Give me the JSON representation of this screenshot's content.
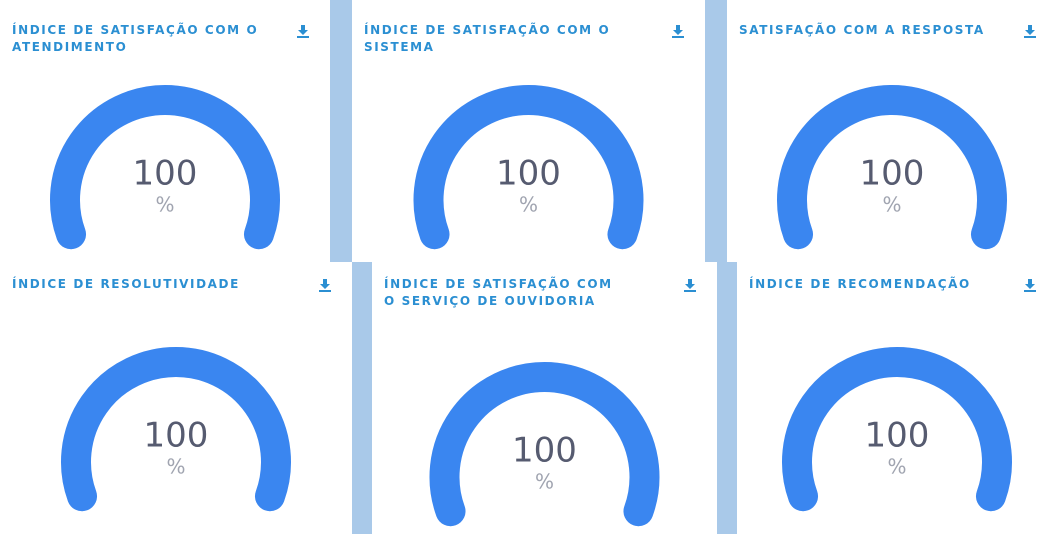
{
  "chart_data": [
    {
      "type": "gauge",
      "title": "ÍNDICE DE SATISFAÇÃO COM O ATENDIMENTO",
      "value": 100,
      "unit": "%",
      "ylim": [
        0,
        100
      ],
      "color": "#3a86f0"
    },
    {
      "type": "gauge",
      "title": "ÍNDICE DE SATISFAÇÃO COM O SISTEMA",
      "value": 100,
      "unit": "%",
      "ylim": [
        0,
        100
      ],
      "color": "#3a86f0"
    },
    {
      "type": "gauge",
      "title": "SATISFAÇÃO COM A RESPOSTA",
      "value": 100,
      "unit": "%",
      "ylim": [
        0,
        100
      ],
      "color": "#3a86f0"
    },
    {
      "type": "gauge",
      "title": "ÍNDICE DE RESOLUTIVIDADE",
      "value": 100,
      "unit": "%",
      "ylim": [
        0,
        100
      ],
      "color": "#3a86f0"
    },
    {
      "type": "gauge",
      "title": "ÍNDICE DE SATISFAÇÃO COM O SERVIÇO DE OUVIDORIA",
      "value": 100,
      "unit": "%",
      "ylim": [
        0,
        100
      ],
      "color": "#3a86f0"
    },
    {
      "type": "gauge",
      "title": "ÍNDICE DE RECOMENDAÇÃO",
      "value": 100,
      "unit": "%",
      "ylim": [
        0,
        100
      ],
      "color": "#3a86f0"
    }
  ]
}
